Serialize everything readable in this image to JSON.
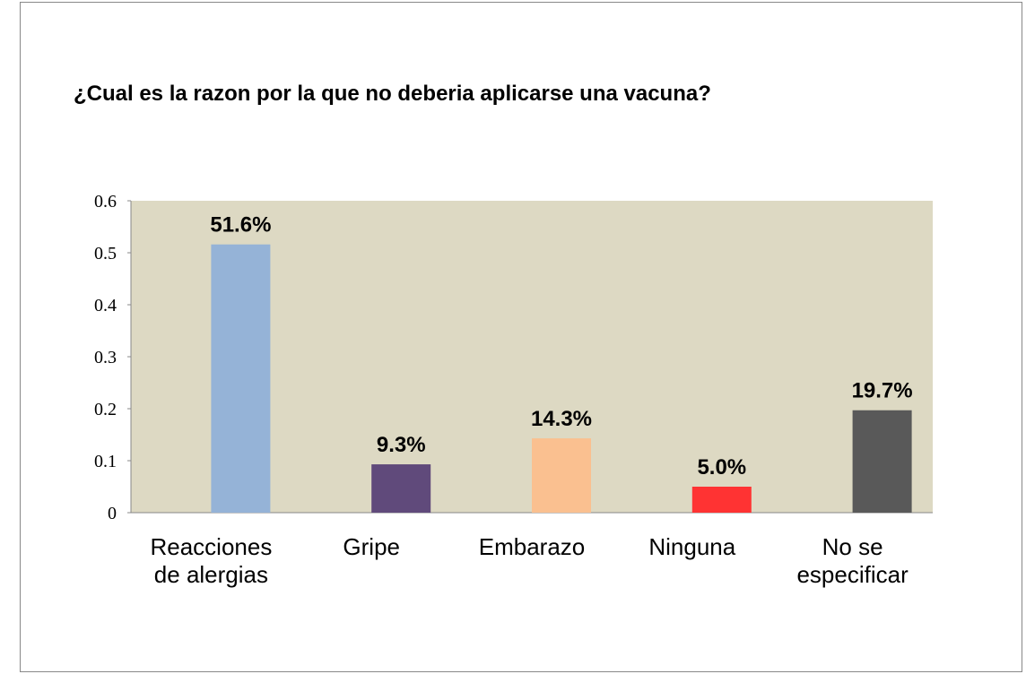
{
  "chart_data": {
    "type": "bar",
    "title": "¿Cual es la razon por la que no deberia aplicarse una vacuna?",
    "categories": [
      "Reacciones de alergias",
      "Gripe",
      "Embarazo",
      "Ninguna",
      "No se especificar"
    ],
    "values": [
      0.516,
      0.093,
      0.143,
      0.05,
      0.197
    ],
    "value_labels": [
      "51.6%",
      "9.3%",
      "14.3%",
      "5.0%",
      "19.7%"
    ],
    "colors": [
      "#95b3d7",
      "#604a7b",
      "#fac090",
      "#ff3333",
      "#595959"
    ],
    "ylim": [
      0,
      0.6
    ],
    "yticks": [
      0,
      0.1,
      0.2,
      0.3,
      0.4,
      0.5,
      0.6
    ],
    "plot_background": "#ddd9c3"
  }
}
